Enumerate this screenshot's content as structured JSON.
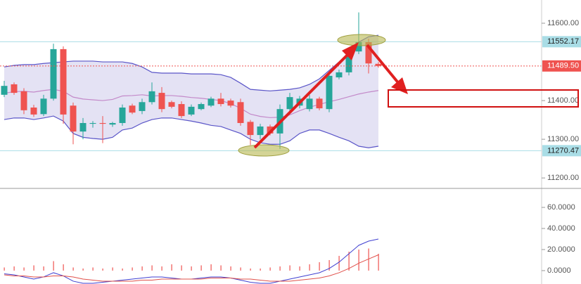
{
  "chart_data": [
    {
      "type": "candlestick",
      "categories": [
        null,
        null,
        null,
        null,
        null,
        null,
        null,
        null,
        null,
        null,
        null,
        null,
        null,
        null,
        null,
        null,
        null,
        null,
        null,
        null,
        null,
        null,
        null,
        null,
        null,
        null,
        null,
        null,
        null,
        null,
        null,
        null,
        null,
        null,
        null,
        null,
        null,
        null,
        null
      ],
      "open": [
        11415,
        11442,
        11424,
        11382,
        11365,
        11405,
        11533,
        11387,
        11320,
        11340,
        11342,
        11338,
        11342,
        11387,
        11373,
        11396,
        11420,
        11396,
        11391,
        11364,
        11378,
        11387,
        11405,
        11400,
        11396,
        11345,
        11311,
        11333,
        11315,
        11378,
        11387,
        11378,
        11405,
        11378,
        11460,
        11473,
        11527,
        11551,
        11495
      ],
      "close": [
        11438,
        11420,
        11375,
        11364,
        11405,
        11533,
        11364,
        11320,
        11342,
        11342,
        11340,
        11342,
        11382,
        11369,
        11396,
        11424,
        11378,
        11384,
        11360,
        11384,
        11391,
        11405,
        11391,
        11387,
        11342,
        11311,
        11333,
        11315,
        11378,
        11409,
        11405,
        11405,
        11380,
        11464,
        11473,
        11527,
        11551,
        11496,
        11489.5
      ],
      "high": [
        11451,
        11447,
        11432,
        11389,
        11415,
        11547,
        11540,
        11395,
        11355,
        11347,
        11360,
        11345,
        11390,
        11392,
        11405,
        11447,
        11435,
        11400,
        11398,
        11390,
        11395,
        11410,
        11420,
        11405,
        11405,
        11350,
        11340,
        11338,
        11390,
        11420,
        11412,
        11415,
        11410,
        11470,
        11480,
        11535,
        11628,
        11560,
        11500
      ],
      "low": [
        11409,
        11415,
        11365,
        11358,
        11360,
        11400,
        11340,
        11287,
        11300,
        11330,
        11290,
        11332,
        11335,
        11365,
        11365,
        11390,
        11370,
        11380,
        11355,
        11360,
        11375,
        11383,
        11385,
        11382,
        11335,
        11285,
        11300,
        11310,
        11275,
        11370,
        11380,
        11372,
        11375,
        11370,
        11455,
        11465,
        11520,
        11470,
        11485
      ],
      "up_color": "#26a69a",
      "down_color": "#ef5350",
      "series": [
        {
          "color": "#5a55c8",
          "values": [
            11487,
            11491,
            11493,
            11493,
            11496,
            11498,
            11500,
            11502,
            11502,
            11502,
            11500,
            11500,
            11500,
            11496,
            11487,
            11473,
            11471,
            11471,
            11471,
            11469,
            11469,
            11469,
            11467,
            11460,
            11445,
            11429,
            11427,
            11425,
            11427,
            11429,
            11433,
            11442,
            11456,
            11478,
            11500,
            11524,
            11551,
            11565,
            11569
          ]
        },
        {
          "color": "#c389c9",
          "values": [
            11419,
            11423,
            11424,
            11422,
            11426,
            11429,
            11424,
            11409,
            11404,
            11402,
            11400,
            11403,
            11412,
            11413,
            11415,
            11412,
            11413,
            11413,
            11411,
            11408,
            11406,
            11403,
            11400,
            11392,
            11380,
            11365,
            11359,
            11356,
            11357,
            11363,
            11374,
            11383,
            11390,
            11397,
            11403,
            11410,
            11417,
            11422,
            11426
          ]
        },
        {
          "color": "#5a55c8",
          "values": [
            11351,
            11355,
            11355,
            11351,
            11355,
            11360,
            11347,
            11315,
            11305,
            11302,
            11300,
            11305,
            11324,
            11329,
            11342,
            11351,
            11355,
            11355,
            11351,
            11347,
            11342,
            11336,
            11333,
            11324,
            11315,
            11300,
            11291,
            11287,
            11287,
            11296,
            11315,
            11324,
            11324,
            11315,
            11305,
            11296,
            11282,
            11278,
            11282
          ]
        }
      ],
      "band_fill": "#e4e2f4",
      "ylim": [
        11173,
        11660
      ],
      "yticks": [
        {
          "value": 11600,
          "label": "11600.00"
        },
        {
          "value": 11400,
          "label": "11400.00"
        },
        {
          "value": 11300,
          "label": "11300.00"
        },
        {
          "value": 11200,
          "label": "11200.00"
        }
      ],
      "levels": [
        11552.17,
        11270.47
      ],
      "level_color": "#a9dde6",
      "last_price": {
        "value": 11489.5,
        "label": "11489.50"
      },
      "last_price_color": "#ef5350"
    },
    {
      "type": "bar",
      "categories": [
        null,
        null,
        null,
        null,
        null,
        null,
        null,
        null,
        null,
        null,
        null,
        null,
        null,
        null,
        null,
        null,
        null,
        null,
        null,
        null,
        null,
        null,
        null,
        null,
        null,
        null,
        null,
        null,
        null,
        null,
        null,
        null,
        null,
        null,
        null,
        null,
        null,
        null,
        null
      ],
      "series": [
        {
          "type": "bar",
          "color": "#ef5350",
          "values": [
            3,
            4,
            3,
            5,
            4,
            9,
            6,
            3,
            2,
            3,
            2,
            3,
            2,
            3,
            4,
            5,
            4,
            6,
            5,
            4,
            5,
            6,
            5,
            4,
            3,
            2,
            2,
            3,
            4,
            5,
            4,
            6,
            8,
            10,
            14,
            18,
            20,
            21,
            16
          ]
        },
        {
          "type": "line",
          "color": "#3f3fd0",
          "values": [
            -3,
            -4,
            -6,
            -8,
            -6,
            -2,
            -5,
            -10,
            -12,
            -12,
            -11,
            -10,
            -9,
            -8,
            -7,
            -6,
            -6,
            -7,
            -8,
            -8,
            -7,
            -6,
            -6,
            -7,
            -9,
            -11,
            -12,
            -12,
            -10,
            -8,
            -6,
            -4,
            -2,
            2,
            8,
            16,
            24,
            28,
            30
          ]
        },
        {
          "type": "line",
          "color": "#e0504a",
          "values": [
            -4,
            -5,
            -5,
            -6,
            -6,
            -5,
            -5,
            -6,
            -8,
            -9,
            -10,
            -10,
            -10,
            -10,
            -9,
            -9,
            -8,
            -8,
            -8,
            -8,
            -8,
            -7,
            -7,
            -7,
            -8,
            -8,
            -9,
            -10,
            -10,
            -10,
            -9,
            -8,
            -7,
            -5,
            -2,
            2,
            7,
            11,
            15
          ]
        }
      ],
      "ylim": [
        -12.7,
        76.7
      ],
      "yticks": [
        {
          "value": 60,
          "label": "60.0000"
        },
        {
          "value": 40,
          "label": "40.0000"
        },
        {
          "value": 20,
          "label": "20.0000"
        },
        {
          "value": 0,
          "label": "0.0000"
        }
      ]
    }
  ]
}
